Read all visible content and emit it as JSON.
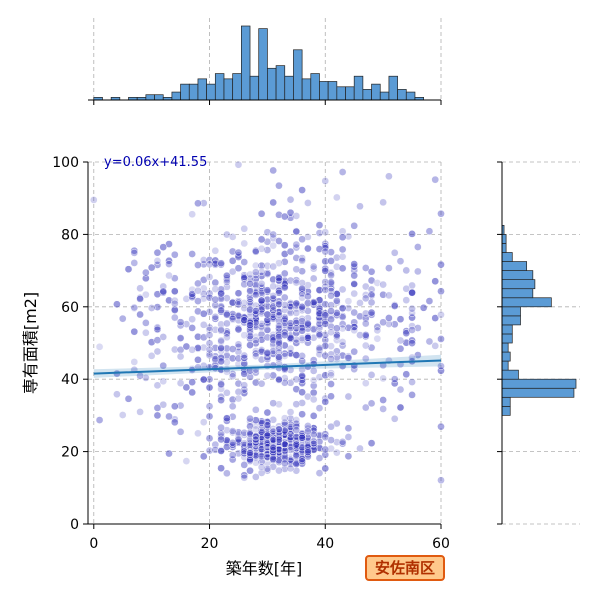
{
  "badge": "安佐南区",
  "chart_data": {
    "type": "scatter",
    "xlabel": "築年数[年]",
    "ylabel": "専有面積[m2]",
    "xlim": [
      -1,
      60
    ],
    "ylim": [
      0,
      100
    ],
    "xticks": [
      0,
      20,
      40,
      60
    ],
    "yticks": [
      0,
      20,
      40,
      60,
      80,
      100
    ],
    "grid": true,
    "regression": {
      "label": "y=0.06x+41.55",
      "slope": 0.06,
      "intercept": 41.55
    },
    "point_color": "#3333bb",
    "line_color": "#1f77b4",
    "hist_color": "#5b9bd5",
    "clusters": [
      {
        "cx": 31,
        "cy": 22,
        "sx": 4.5,
        "sy": 3,
        "n": 420
      },
      {
        "cx": 30,
        "cy": 57,
        "sx": 7,
        "sy": 9,
        "n": 380
      },
      {
        "cx": 45,
        "cy": 52,
        "sx": 9,
        "sy": 12,
        "n": 220
      },
      {
        "cx": 22,
        "cy": 50,
        "sx": 7,
        "sy": 14,
        "n": 160
      },
      {
        "cx": 35,
        "cy": 75,
        "sx": 12,
        "sy": 10,
        "n": 90
      },
      {
        "cx": 12,
        "cy": 55,
        "sx": 8,
        "sy": 18,
        "n": 60
      }
    ],
    "x_hist": [
      1,
      0,
      1,
      0,
      1,
      1,
      2,
      2,
      1,
      3,
      6,
      6,
      8,
      6,
      10,
      8,
      10,
      28,
      9,
      27,
      12,
      13,
      9,
      19,
      8,
      10,
      7,
      7,
      5,
      5,
      9,
      4,
      6,
      3,
      9,
      4,
      3,
      1,
      0,
      0
    ],
    "y_hist": [
      0,
      0,
      0,
      0,
      0,
      0,
      0,
      0,
      0,
      0,
      0,
      0,
      4,
      4,
      35,
      36,
      8,
      3,
      4,
      3,
      5,
      5,
      9,
      9,
      24,
      15,
      16,
      15,
      12,
      5,
      2,
      2,
      1,
      0,
      0,
      0,
      0,
      0,
      0,
      0
    ]
  }
}
